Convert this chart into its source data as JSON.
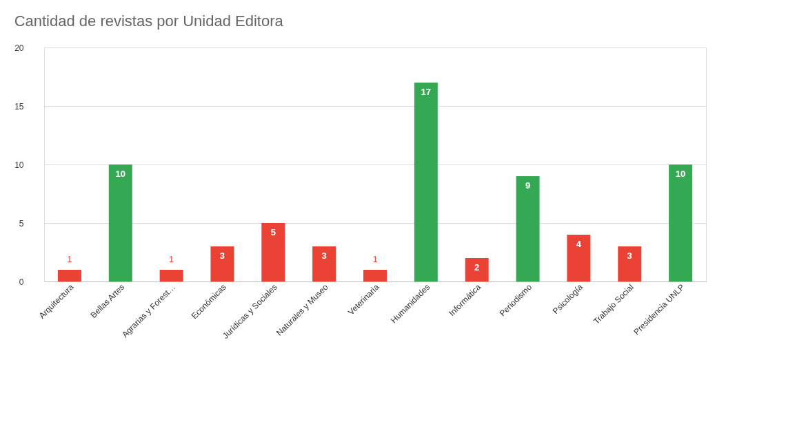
{
  "chart_data": {
    "type": "bar",
    "title": "Cantidad de revistas por Unidad Editora",
    "categories": [
      "Arquitectura",
      "Bellas Artes",
      "Agrarias y Forest…",
      "Económicas",
      "Jurídicas y Sociales",
      "Naturales y Museo",
      "Veterinaria",
      "Humanidades",
      "Informática",
      "Periodismo",
      "Psicología",
      "Trabajo Social",
      "Presidencia UNLP"
    ],
    "values": [
      1,
      10,
      1,
      3,
      5,
      3,
      1,
      17,
      2,
      9,
      4,
      3,
      10
    ],
    "colors": [
      "#ea4335",
      "#34a853",
      "#ea4335",
      "#ea4335",
      "#ea4335",
      "#ea4335",
      "#ea4335",
      "#34a853",
      "#ea4335",
      "#34a853",
      "#ea4335",
      "#ea4335",
      "#34a853"
    ],
    "ylim": [
      0,
      20
    ],
    "yticks": [
      0,
      5,
      10,
      15,
      20
    ],
    "grid": "y",
    "data_labels": true
  }
}
